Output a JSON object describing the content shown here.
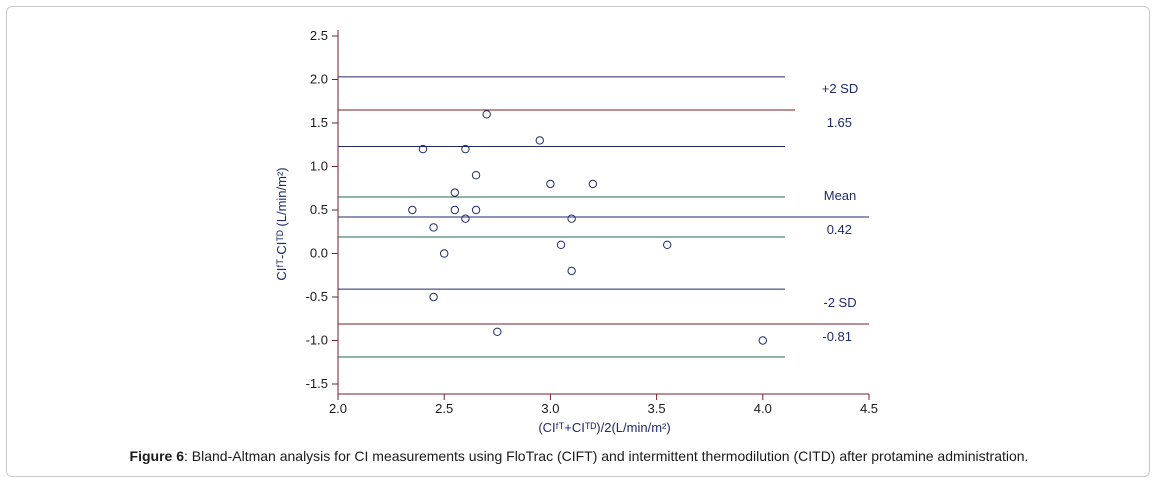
{
  "chart_data": {
    "type": "scatter",
    "title": "",
    "xlabel": "(CIᶠᵀ+CIᵀᴰ)/2(L/min/m²)",
    "ylabel": "CIᶠᵀ-CIᵀᴰ (L/min/m²)",
    "xlim": [
      2.0,
      4.5
    ],
    "ylim": [
      -1.5,
      2.5
    ],
    "x_ticks": [
      "2.0",
      "2.5",
      "3.0",
      "3.5",
      "4.0",
      "4.5"
    ],
    "y_ticks": [
      "-1.5",
      "-1.0",
      "-0.5",
      "0.0",
      "0.5",
      "1.0",
      "1.5",
      "2.0",
      "2.5"
    ],
    "points": [
      {
        "x": 2.35,
        "y": 0.5
      },
      {
        "x": 2.4,
        "y": 1.2
      },
      {
        "x": 2.45,
        "y": 0.3
      },
      {
        "x": 2.45,
        "y": -0.5
      },
      {
        "x": 2.5,
        "y": 0.0
      },
      {
        "x": 2.55,
        "y": 0.7
      },
      {
        "x": 2.55,
        "y": 0.5
      },
      {
        "x": 2.6,
        "y": 1.2
      },
      {
        "x": 2.6,
        "y": 0.4
      },
      {
        "x": 2.65,
        "y": 0.9
      },
      {
        "x": 2.65,
        "y": 0.5
      },
      {
        "x": 2.7,
        "y": 1.6
      },
      {
        "x": 2.75,
        "y": -0.9
      },
      {
        "x": 2.95,
        "y": 1.3
      },
      {
        "x": 3.0,
        "y": 0.8
      },
      {
        "x": 3.05,
        "y": 0.1
      },
      {
        "x": 3.1,
        "y": 0.4
      },
      {
        "x": 3.1,
        "y": -0.2
      },
      {
        "x": 3.2,
        "y": 0.8
      },
      {
        "x": 3.55,
        "y": 0.1
      },
      {
        "x": 4.0,
        "y": -1.0
      }
    ],
    "reference_lines": [
      {
        "y": 1.65,
        "label": "+2 SD",
        "value_label": "1.65",
        "color": "#7a1f2b"
      },
      {
        "y": 0.42,
        "label": "Mean",
        "value_label": "0.42",
        "color": "#1f2a6b"
      },
      {
        "y": -0.81,
        "label": "-2 SD",
        "value_label": "-0.81",
        "color": "#7a1f2b"
      }
    ],
    "ci_lines": [
      {
        "y": 2.03,
        "color": "#1f2a6b"
      },
      {
        "y": 1.23,
        "color": "#1f2a6b"
      },
      {
        "y": 0.65,
        "color": "#1e6b4a"
      },
      {
        "y": 0.19,
        "color": "#1e6b4a"
      },
      {
        "y": -0.41,
        "color": "#1f2a6b"
      },
      {
        "y": -1.19,
        "color": "#1e6b4a"
      }
    ],
    "colors": {
      "axis": "#7a1f2b",
      "text": "#1f2a6b",
      "marker": "#1f2a6b"
    }
  },
  "caption": {
    "label": "Figure 6",
    "text": ": Bland-Altman analysis for CI measurements using FloTrac (CIFT) and intermittent thermodilution (CITD) after protamine administration."
  }
}
